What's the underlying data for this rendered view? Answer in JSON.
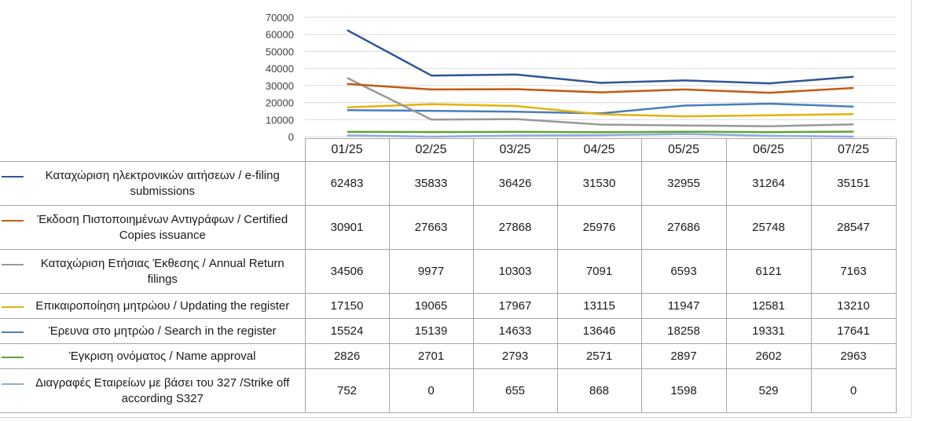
{
  "chart_data": {
    "type": "line",
    "categories": [
      "01/25",
      "02/25",
      "03/25",
      "04/25",
      "05/25",
      "06/25",
      "07/25"
    ],
    "ylim": [
      0,
      70000
    ],
    "yticks": [
      0,
      10000,
      20000,
      30000,
      40000,
      50000,
      60000,
      70000
    ],
    "ytick_labels": [
      "0",
      "10000",
      "20000",
      "30000",
      "40000",
      "50000",
      "60000",
      "70000"
    ],
    "grid": true,
    "legend": "table-left",
    "series": [
      {
        "name": "Καταχώριση ηλεκτρονικών αιτήσεων / e-filing submissions",
        "color": "#2f5597",
        "values": [
          62483,
          35833,
          36426,
          31530,
          32955,
          31264,
          35151
        ],
        "cells": [
          "62483",
          "35833",
          "36426",
          "31530",
          "32955",
          "31264",
          "35151"
        ]
      },
      {
        "name": "Έκδοση Πιστοποιημένων Αντιγράφων / Certified Copies issuance",
        "color": "#c55a11",
        "values": [
          30901,
          27663,
          27868,
          25976,
          27686,
          25748,
          28547
        ],
        "cells": [
          "30901",
          "27663",
          "27868",
          "25976",
          "27686",
          "25748",
          "28547"
        ]
      },
      {
        "name": "Καταχώριση Ετήσιας Έκθεσης / Annual Return filings",
        "color": "#999999",
        "values": [
          34506,
          9977,
          10303,
          7091,
          6593,
          6121,
          7163
        ],
        "cells": [
          "34506",
          "9977",
          "10303",
          "7091",
          "6593",
          "6121",
          "7163"
        ]
      },
      {
        "name": "Επικαιροποίηση μητρώου / Updating the register",
        "color": "#e3b308",
        "values": [
          17150,
          19065,
          17967,
          13115,
          11947,
          12581,
          13210
        ],
        "cells": [
          "17150",
          "19065",
          "17967",
          "13115",
          "11947",
          "12581",
          "13210"
        ]
      },
      {
        "name": "Έρευνα στο μητρώο / Search in the register",
        "color": "#4a7ebb",
        "values": [
          15524,
          15139,
          14633,
          13646,
          18258,
          19331,
          17641
        ],
        "cells": [
          "15524",
          "15139",
          "14633",
          "13646",
          "18258",
          "19331",
          "17641"
        ]
      },
      {
        "name": "Έγκριση ονόματος / Name approval",
        "color": "#5ea33a",
        "values": [
          2826,
          2701,
          2793,
          2571,
          2897,
          2602,
          2963
        ],
        "cells": [
          "2826",
          "2701",
          "2793",
          "2571",
          "2897",
          "2602",
          "2963"
        ]
      },
      {
        "name": "Διαγραφές Εταιρείων με βάσει του 327 /Strike off according S327",
        "color": "#8ea9db",
        "values": [
          752,
          0,
          655,
          868,
          1598,
          529,
          0
        ],
        "cells": [
          "752",
          "0",
          "655",
          "868",
          "1598",
          "529",
          "0"
        ]
      }
    ]
  }
}
